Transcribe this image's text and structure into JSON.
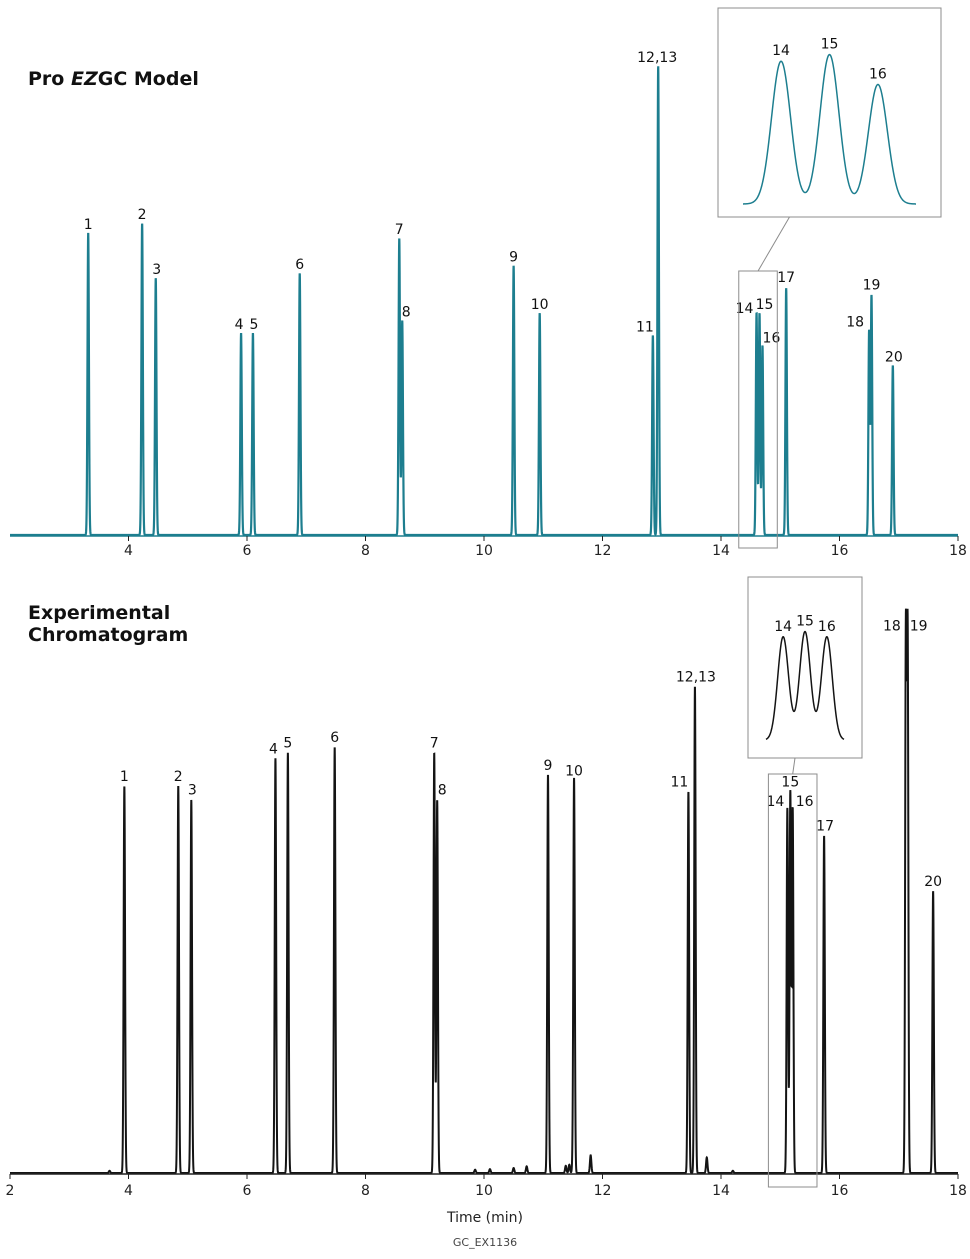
{
  "figure_code": "GC_EX1136",
  "colors": {
    "model": "#1d7e8f",
    "experimental": "#141414",
    "inset_box": "#8c8c8c"
  },
  "chart_data": [
    {
      "type": "line",
      "title_prefix": "Pro ",
      "title_italic": "EZ",
      "title_suffix": "GC Model",
      "xlabel": "",
      "xlim": [
        2,
        18
      ],
      "xticks": [
        4,
        6,
        8,
        10,
        12,
        14,
        16,
        18
      ],
      "ylim": [
        0,
        100
      ],
      "grid": false,
      "peaks": [
        {
          "label": "1",
          "x": 3.32,
          "y": 60.5
        },
        {
          "label": "2",
          "x": 4.23,
          "y": 62.5
        },
        {
          "label": "3",
          "x": 4.46,
          "y": 51.5
        },
        {
          "label": "4",
          "x": 5.9,
          "y": 40.5
        },
        {
          "label": "5",
          "x": 6.1,
          "y": 40.5
        },
        {
          "label": "6",
          "x": 6.89,
          "y": 52.5
        },
        {
          "label": "7",
          "x": 8.57,
          "y": 59.5
        },
        {
          "label": "8",
          "x": 8.62,
          "y": 43.0
        },
        {
          "label": "9",
          "x": 10.5,
          "y": 54.0
        },
        {
          "label": "10",
          "x": 10.94,
          "y": 44.5
        },
        {
          "label": "11",
          "x": 12.85,
          "y": 40.0
        },
        {
          "label": "12,13",
          "x": 12.94,
          "y": 94.0
        },
        {
          "label": "14",
          "x": 14.6,
          "y": 44.5
        },
        {
          "label": "15",
          "x": 14.65,
          "y": 44.5
        },
        {
          "label": "16",
          "x": 14.7,
          "y": 38.0
        },
        {
          "label": "17",
          "x": 15.1,
          "y": 49.5
        },
        {
          "label": "18",
          "x": 16.5,
          "y": 41.0
        },
        {
          "label": "19",
          "x": 16.54,
          "y": 48.0
        },
        {
          "label": "20",
          "x": 16.9,
          "y": 34.0
        }
      ],
      "inset": {
        "labels": [
          "14",
          "15",
          "16"
        ],
        "heights": [
          86,
          90,
          72
        ],
        "source_x_range": [
          14.3,
          14.95
        ]
      }
    },
    {
      "type": "line",
      "title": "Experimental Chromatogram",
      "title_line1": "Experimental",
      "title_line2": "Chromatogram",
      "xlabel": "Time (min)",
      "xlim": [
        2,
        18
      ],
      "xticks": [
        2,
        4,
        6,
        8,
        10,
        12,
        14,
        16,
        18
      ],
      "ylim": [
        0,
        100
      ],
      "grid": false,
      "peaks": [
        {
          "label": "1",
          "x": 3.93,
          "y": 70.0
        },
        {
          "label": "2",
          "x": 4.84,
          "y": 70.0
        },
        {
          "label": "3",
          "x": 5.06,
          "y": 67.5
        },
        {
          "label": "4",
          "x": 6.48,
          "y": 75.0
        },
        {
          "label": "5",
          "x": 6.69,
          "y": 76.0
        },
        {
          "label": "6",
          "x": 7.48,
          "y": 77.0
        },
        {
          "label": "7",
          "x": 9.16,
          "y": 76.0
        },
        {
          "label": "8",
          "x": 9.21,
          "y": 67.5
        },
        {
          "label": "9",
          "x": 11.08,
          "y": 72.0
        },
        {
          "label": "10",
          "x": 11.52,
          "y": 71.0
        },
        {
          "label": "11",
          "x": 13.45,
          "y": 69.0
        },
        {
          "label": "12,13",
          "x": 13.56,
          "y": 88.0
        },
        {
          "label": "14",
          "x": 15.12,
          "y": 66.0
        },
        {
          "label": "15",
          "x": 15.17,
          "y": 69.0
        },
        {
          "label": "16",
          "x": 15.21,
          "y": 66.0
        },
        {
          "label": "17",
          "x": 15.74,
          "y": 61.0
        },
        {
          "label": "18",
          "x": 17.12,
          "y": 97.0
        },
        {
          "label": "19",
          "x": 17.15,
          "y": 97.0
        },
        {
          "label": "20",
          "x": 17.58,
          "y": 51.0
        }
      ],
      "minor_peaks": [
        {
          "x": 3.68,
          "y": 0.4
        },
        {
          "x": 9.85,
          "y": 0.6
        },
        {
          "x": 10.1,
          "y": 0.7
        },
        {
          "x": 10.5,
          "y": 0.9
        },
        {
          "x": 10.72,
          "y": 1.2
        },
        {
          "x": 11.38,
          "y": 1.3
        },
        {
          "x": 11.44,
          "y": 1.5
        },
        {
          "x": 11.5,
          "y": 1.8
        },
        {
          "x": 11.8,
          "y": 3.2
        },
        {
          "x": 13.76,
          "y": 2.8
        },
        {
          "x": 14.2,
          "y": 0.4
        }
      ],
      "inset": {
        "labels": [
          "14",
          "15",
          "16"
        ],
        "heights": [
          80,
          84,
          80
        ],
        "source_x_range": [
          14.8,
          15.62
        ]
      }
    }
  ]
}
